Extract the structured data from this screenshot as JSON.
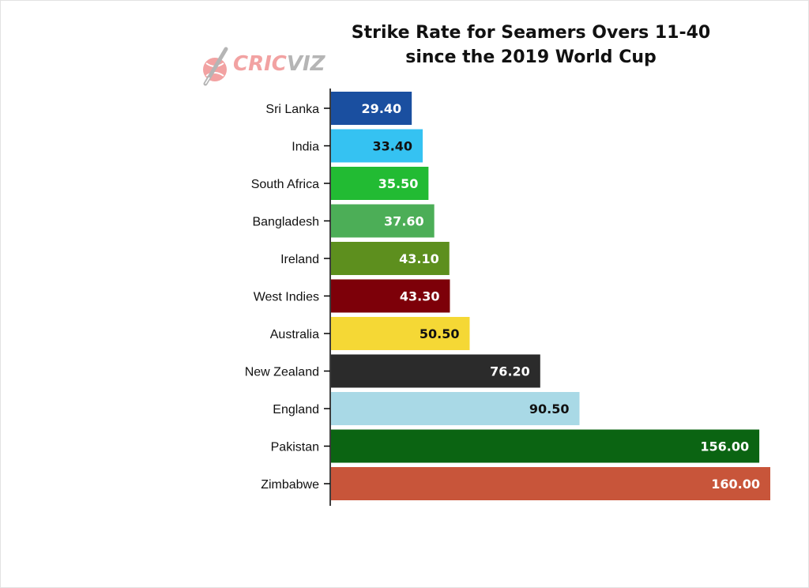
{
  "chart_data": {
    "type": "bar",
    "orientation": "horizontal",
    "title": "Strike Rate for Seamers Overs 11-40",
    "subtitle": "since the 2019 World Cup",
    "xlabel": "",
    "ylabel": "",
    "xlim": [
      0,
      160
    ],
    "grid": false,
    "legend": "none",
    "categories": [
      "Sri Lanka",
      "India",
      "South Africa",
      "Bangladesh",
      "Ireland",
      "West Indies",
      "Australia",
      "New Zealand",
      "England",
      "Pakistan",
      "Zimbabwe"
    ],
    "values": [
      29.4,
      33.4,
      35.5,
      37.6,
      43.1,
      43.3,
      50.5,
      76.2,
      90.5,
      156.0,
      160.0
    ],
    "value_labels": [
      "29.40",
      "33.40",
      "35.50",
      "37.60",
      "43.10",
      "43.30",
      "50.50",
      "76.20",
      "90.50",
      "156.00",
      "160.00"
    ],
    "colors": [
      "#1a4fa0",
      "#35c2f2",
      "#22bb33",
      "#4cae57",
      "#5d8f1e",
      "#7d0009",
      "#f5d835",
      "#2b2b2b",
      "#a9d9e6",
      "#0b6412",
      "#c8553a"
    ],
    "label_colors": [
      "#ffffff",
      "#111111",
      "#ffffff",
      "#ffffff",
      "#ffffff",
      "#ffffff",
      "#111111",
      "#ffffff",
      "#111111",
      "#ffffff",
      "#ffffff"
    ]
  },
  "logo": {
    "text_a": "CRIC",
    "text_b": "VIZ"
  }
}
